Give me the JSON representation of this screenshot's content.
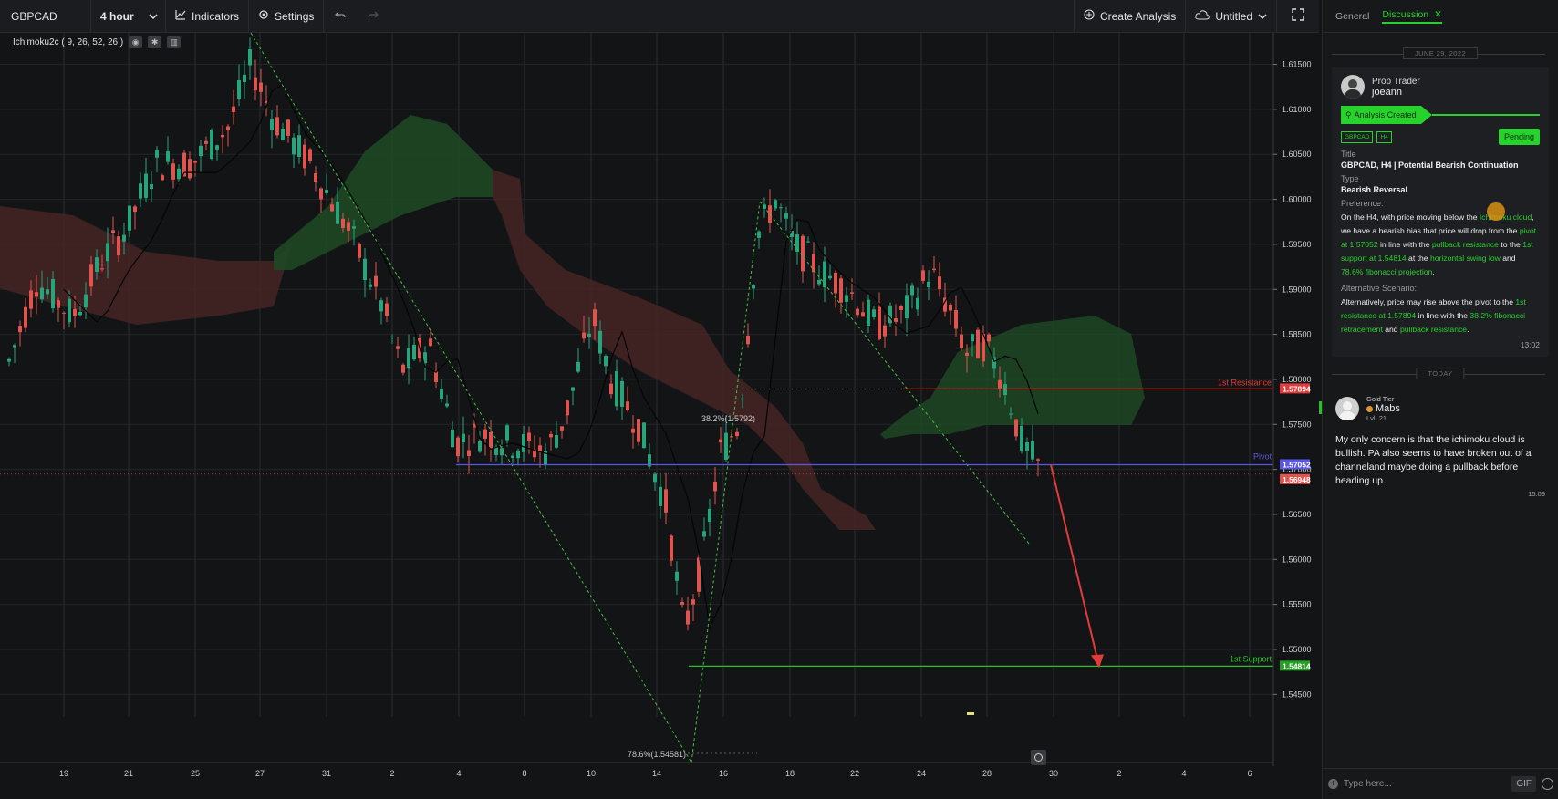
{
  "toolbar": {
    "symbol": "GBPCAD",
    "interval": "4 hour",
    "indicators": "Indicators",
    "settings": "Settings",
    "create_analysis": "Create Analysis",
    "workspace": "Untitled"
  },
  "indicator_legend": {
    "label": "Ichimoku2c ( 9, 26, 52, 26 )"
  },
  "chart_data": {
    "type": "candlestick",
    "symbol": "GBPCAD",
    "timeframe": "4 hour",
    "ylim": [
      1.5425,
      1.6185
    ],
    "y_ticks": [
      "1.61500",
      "1.61000",
      "1.60500",
      "1.60000",
      "1.59500",
      "1.59000",
      "1.58500",
      "1.58000",
      "1.57500",
      "1.57000",
      "1.56500",
      "1.56000",
      "1.55500",
      "1.55000",
      "1.54500"
    ],
    "x_ticks": [
      "19",
      "21",
      "25",
      "27",
      "31",
      "2",
      "4",
      "8",
      "10",
      "14",
      "16",
      "18",
      "22",
      "24",
      "28",
      "30",
      "2",
      "4",
      "6"
    ],
    "lines": {
      "resistance": {
        "label": "1st Resistance",
        "price": "1.57894",
        "value": 1.57894,
        "color": "#e23b3b"
      },
      "pivot": {
        "label": "Pivot",
        "price": "1.57052",
        "value": 1.57052,
        "color": "#5b57e6"
      },
      "support": {
        "label": "1st Support",
        "price": "1.54814",
        "value": 1.54814,
        "color": "#27c127"
      },
      "current": {
        "price": "1.56948",
        "value": 1.56948,
        "color": "#e0544f"
      }
    },
    "annotations": {
      "fib_382": "38.2%(1.5792)",
      "fib_786": "78.6%(1.54581)"
    },
    "colors": {
      "up": "#27a47a",
      "down": "#e0544f",
      "cloud_bull": "#1f4a25",
      "cloud_bear": "#4a2424"
    }
  },
  "panel": {
    "tab_general": "General",
    "tab_discussion": "Discussion",
    "date_separator": "JUNE 29, 2022",
    "today_separator": "TODAY",
    "post": {
      "role": "Prop Trader",
      "username": "joeann",
      "status_label": "Analysis Created",
      "tag_symbol": "GBPCAD",
      "tag_tf": "H4",
      "pending": "Pending",
      "title_label": "Title",
      "title_value": "GBPCAD, H4 | Potential Bearish Continuation",
      "type_label": "Type",
      "type_value": "Bearish Reversal",
      "preference_label": "Preference:",
      "pref_1": "On the H4, with price moving below the ",
      "pref_2": "Ichimoku cloud",
      "pref_3": ", we have a bearish bias that price will drop from the ",
      "pref_4": "pivot at 1.57052",
      "pref_5": " in line with the ",
      "pref_6": "pullback resistance",
      "pref_7": " to the ",
      "pref_8": "1st support at 1.54814",
      "pref_9": " at the ",
      "pref_10": "horizontal swing low",
      "pref_11": " and ",
      "pref_12": "78.6% fibonacci projection",
      "pref_13": ".",
      "alt_label": "Alternative Scenario:",
      "alt_1": "Alternatively, price may rise above the pivot to the ",
      "alt_2": "1st resistance at 1.57894",
      "alt_3": " in line with the ",
      "alt_4": "38.2% fibonacci retracement",
      "alt_5": " and ",
      "alt_6": "pullback resistance",
      "alt_7": ".",
      "time": "13:02"
    },
    "comment": {
      "tier": "Gold Tier",
      "username": "Mabs",
      "level": "Lvl. 21",
      "text": "My only concern is that the ichimoku cloud is bullish. PA also seems to have broken out of a channeland maybe doing a pullback before heading up.",
      "time": "15:09"
    },
    "composer_placeholder": "Type here...",
    "gif": "GIF"
  }
}
